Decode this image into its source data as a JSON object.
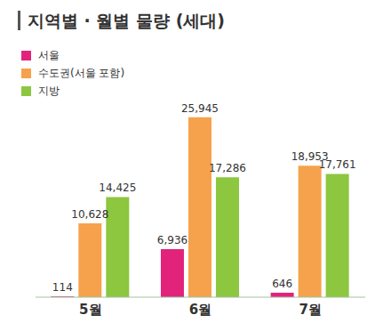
{
  "chart_data": {
    "type": "bar",
    "title": "지역별 · 월별 물량 (세대)",
    "categories": [
      "5월",
      "6월",
      "7월"
    ],
    "series": [
      {
        "name": "서울",
        "color": "#e2237b",
        "values": [
          114,
          6936,
          646
        ],
        "value_labels": [
          "114",
          "6,936",
          "646"
        ]
      },
      {
        "name": "수도권(서울 포함)",
        "color": "#f6a24c",
        "values": [
          10628,
          25945,
          18953
        ],
        "value_labels": [
          "10,628",
          "25,945",
          "18,953"
        ]
      },
      {
        "name": "지방",
        "color": "#8dc63f",
        "values": [
          14425,
          17286,
          17761
        ],
        "value_labels": [
          "14,425",
          "17,286",
          "17,761"
        ]
      }
    ],
    "ylim": [
      0,
      30000
    ],
    "data_labels": true,
    "tick_labels": "x",
    "legend": "upper left",
    "grid": false
  }
}
